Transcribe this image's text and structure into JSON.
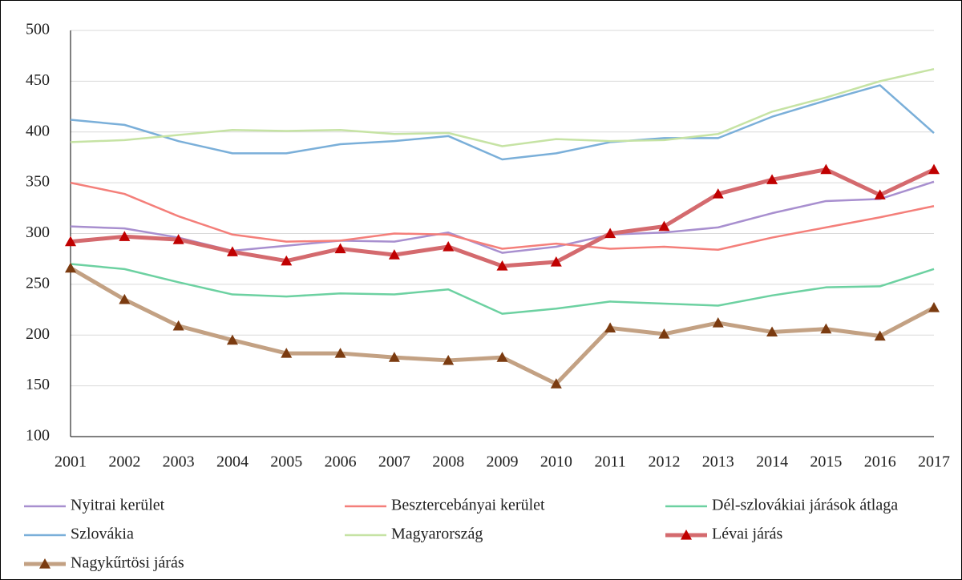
{
  "chart_data": {
    "type": "line",
    "categories": [
      "2001",
      "2002",
      "2003",
      "2004",
      "2005",
      "2006",
      "2007",
      "2008",
      "2009",
      "2010",
      "2011",
      "2012",
      "2013",
      "2014",
      "2015",
      "2016",
      "2017"
    ],
    "ylim": [
      100,
      500
    ],
    "yticks": [
      100,
      150,
      200,
      250,
      300,
      350,
      400,
      450,
      500
    ],
    "grid": true,
    "legend": "bottom",
    "series": [
      {
        "name": "Nyitrai kerület",
        "color": "#a88fcf",
        "values": [
          307,
          305,
          296,
          283,
          288,
          293,
          292,
          301,
          281,
          287,
          299,
          301,
          306,
          320,
          332,
          334,
          351
        ]
      },
      {
        "name": "Besztercebányai kerület",
        "color": "#f47f7a",
        "values": [
          350,
          339,
          317,
          299,
          292,
          293,
          300,
          299,
          285,
          290,
          285,
          287,
          284,
          296,
          306,
          316,
          327
        ]
      },
      {
        "name": "Dél-szlovákiai járások átlaga",
        "color": "#6cd1a1",
        "values": [
          270,
          265,
          252,
          240,
          238,
          241,
          240,
          245,
          221,
          226,
          233,
          231,
          229,
          239,
          247,
          248,
          265
        ]
      },
      {
        "name": "Szlovákia",
        "color": "#7aafd9",
        "values": [
          412,
          407,
          391,
          379,
          379,
          388,
          391,
          396,
          373,
          379,
          390,
          394,
          394,
          415,
          431,
          446,
          399
        ]
      },
      {
        "name": "Magyarország",
        "color": "#c6e3a4",
        "values": [
          390,
          392,
          397,
          402,
          401,
          402,
          398,
          399,
          386,
          393,
          391,
          392,
          398,
          420,
          434,
          450,
          462
        ]
      },
      {
        "name": "Lévai járás",
        "color": "#d46a6e",
        "marker": "triangle",
        "marker_color": "#c00000",
        "values": [
          292,
          297,
          294,
          282,
          273,
          285,
          279,
          287,
          268,
          272,
          300,
          307,
          339,
          353,
          363,
          338,
          363
        ]
      },
      {
        "name": "Nagykűrtösi járás",
        "color": "#c3a183",
        "marker": "triangle",
        "marker_color": "#7b3b10",
        "values": [
          266,
          235,
          209,
          195,
          182,
          182,
          178,
          175,
          178,
          152,
          207,
          201,
          212,
          203,
          206,
          199,
          227
        ]
      }
    ]
  }
}
